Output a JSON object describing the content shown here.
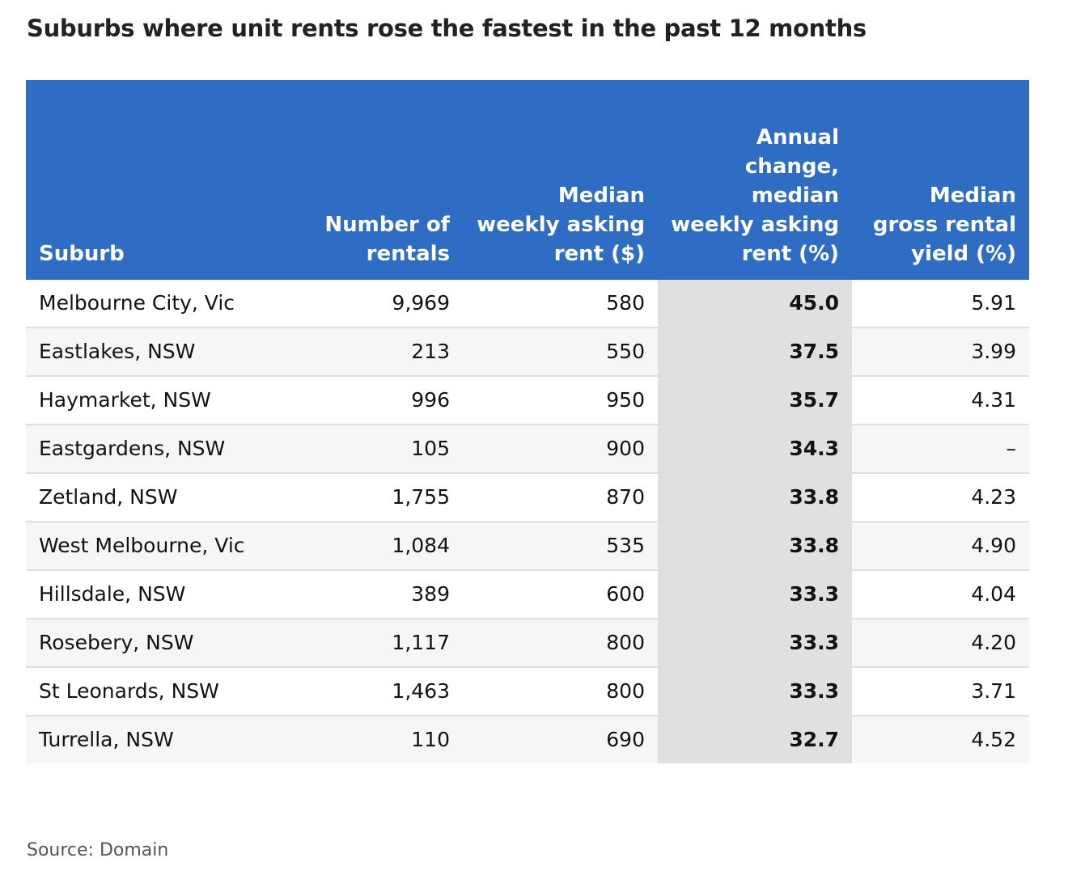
{
  "title": "Suburbs where unit rents rose the fastest in the past 12 months",
  "source": "Source: Domain",
  "chart_data": {
    "type": "table",
    "title": "Suburbs where unit rents rose the fastest in the past 12 months",
    "columns": [
      "Suburb",
      "Number of rentals",
      "Median weekly asking rent ($)",
      "Annual change, median weekly asking rent (%)",
      "Median gross rental yield (%)"
    ],
    "rows": [
      [
        "Melbourne City, Vic",
        "9,969",
        "580",
        "45.0",
        "5.91"
      ],
      [
        "Eastlakes, NSW",
        "213",
        "550",
        "37.5",
        "3.99"
      ],
      [
        "Haymarket, NSW",
        "996",
        "950",
        "35.7",
        "4.31"
      ],
      [
        "Eastgardens, NSW",
        "105",
        "900",
        "34.3",
        "–"
      ],
      [
        "Zetland, NSW",
        "1,755",
        "870",
        "33.8",
        "4.23"
      ],
      [
        "West Melbourne, Vic",
        "1,084",
        "535",
        "33.8",
        "4.90"
      ],
      [
        "Hillsdale, NSW",
        "389",
        "600",
        "33.3",
        "4.04"
      ],
      [
        "Rosebery, NSW",
        "1,117",
        "800",
        "33.3",
        "4.20"
      ],
      [
        "St Leonards, NSW",
        "1,463",
        "800",
        "33.3",
        "3.71"
      ],
      [
        "Turrella, NSW",
        "110",
        "690",
        "32.7",
        "4.52"
      ]
    ],
    "highlight_column": 3,
    "header_color": "#2f6dc4",
    "highlight_color": "#e0e0e0"
  }
}
